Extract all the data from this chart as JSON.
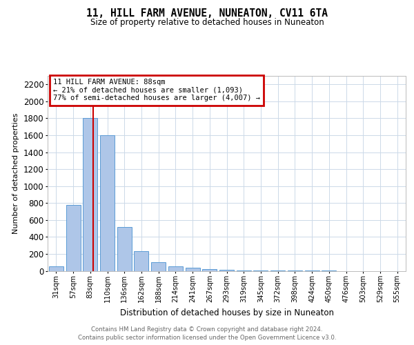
{
  "title": "11, HILL FARM AVENUE, NUNEATON, CV11 6TA",
  "subtitle": "Size of property relative to detached houses in Nuneaton",
  "xlabel": "Distribution of detached houses by size in Nuneaton",
  "ylabel": "Number of detached properties",
  "footer_line1": "Contains HM Land Registry data © Crown copyright and database right 2024.",
  "footer_line2": "Contains public sector information licensed under the Open Government Licence v3.0.",
  "categories": [
    "31sqm",
    "57sqm",
    "83sqm",
    "110sqm",
    "136sqm",
    "162sqm",
    "188sqm",
    "214sqm",
    "241sqm",
    "267sqm",
    "293sqm",
    "319sqm",
    "345sqm",
    "372sqm",
    "398sqm",
    "424sqm",
    "450sqm",
    "476sqm",
    "503sqm",
    "529sqm",
    "555sqm"
  ],
  "values": [
    50,
    780,
    1800,
    1600,
    520,
    235,
    105,
    55,
    35,
    20,
    15,
    5,
    3,
    2,
    1,
    1,
    1,
    0,
    0,
    0,
    0
  ],
  "bar_color": "#aec6e8",
  "bar_edge_color": "#5b9bd5",
  "property_label": "11 HILL FARM AVENUE: 88sqm",
  "annotation_line1": "← 21% of detached houses are smaller (1,093)",
  "annotation_line2": "77% of semi-detached houses are larger (4,007) →",
  "vline_color": "#cc0000",
  "vline_x": 2.18,
  "annotation_box_color": "#cc0000",
  "ylim": [
    0,
    2300
  ],
  "yticks": [
    0,
    200,
    400,
    600,
    800,
    1000,
    1200,
    1400,
    1600,
    1800,
    2000,
    2200
  ],
  "background_color": "#ffffff",
  "grid_color": "#ccd9e8"
}
